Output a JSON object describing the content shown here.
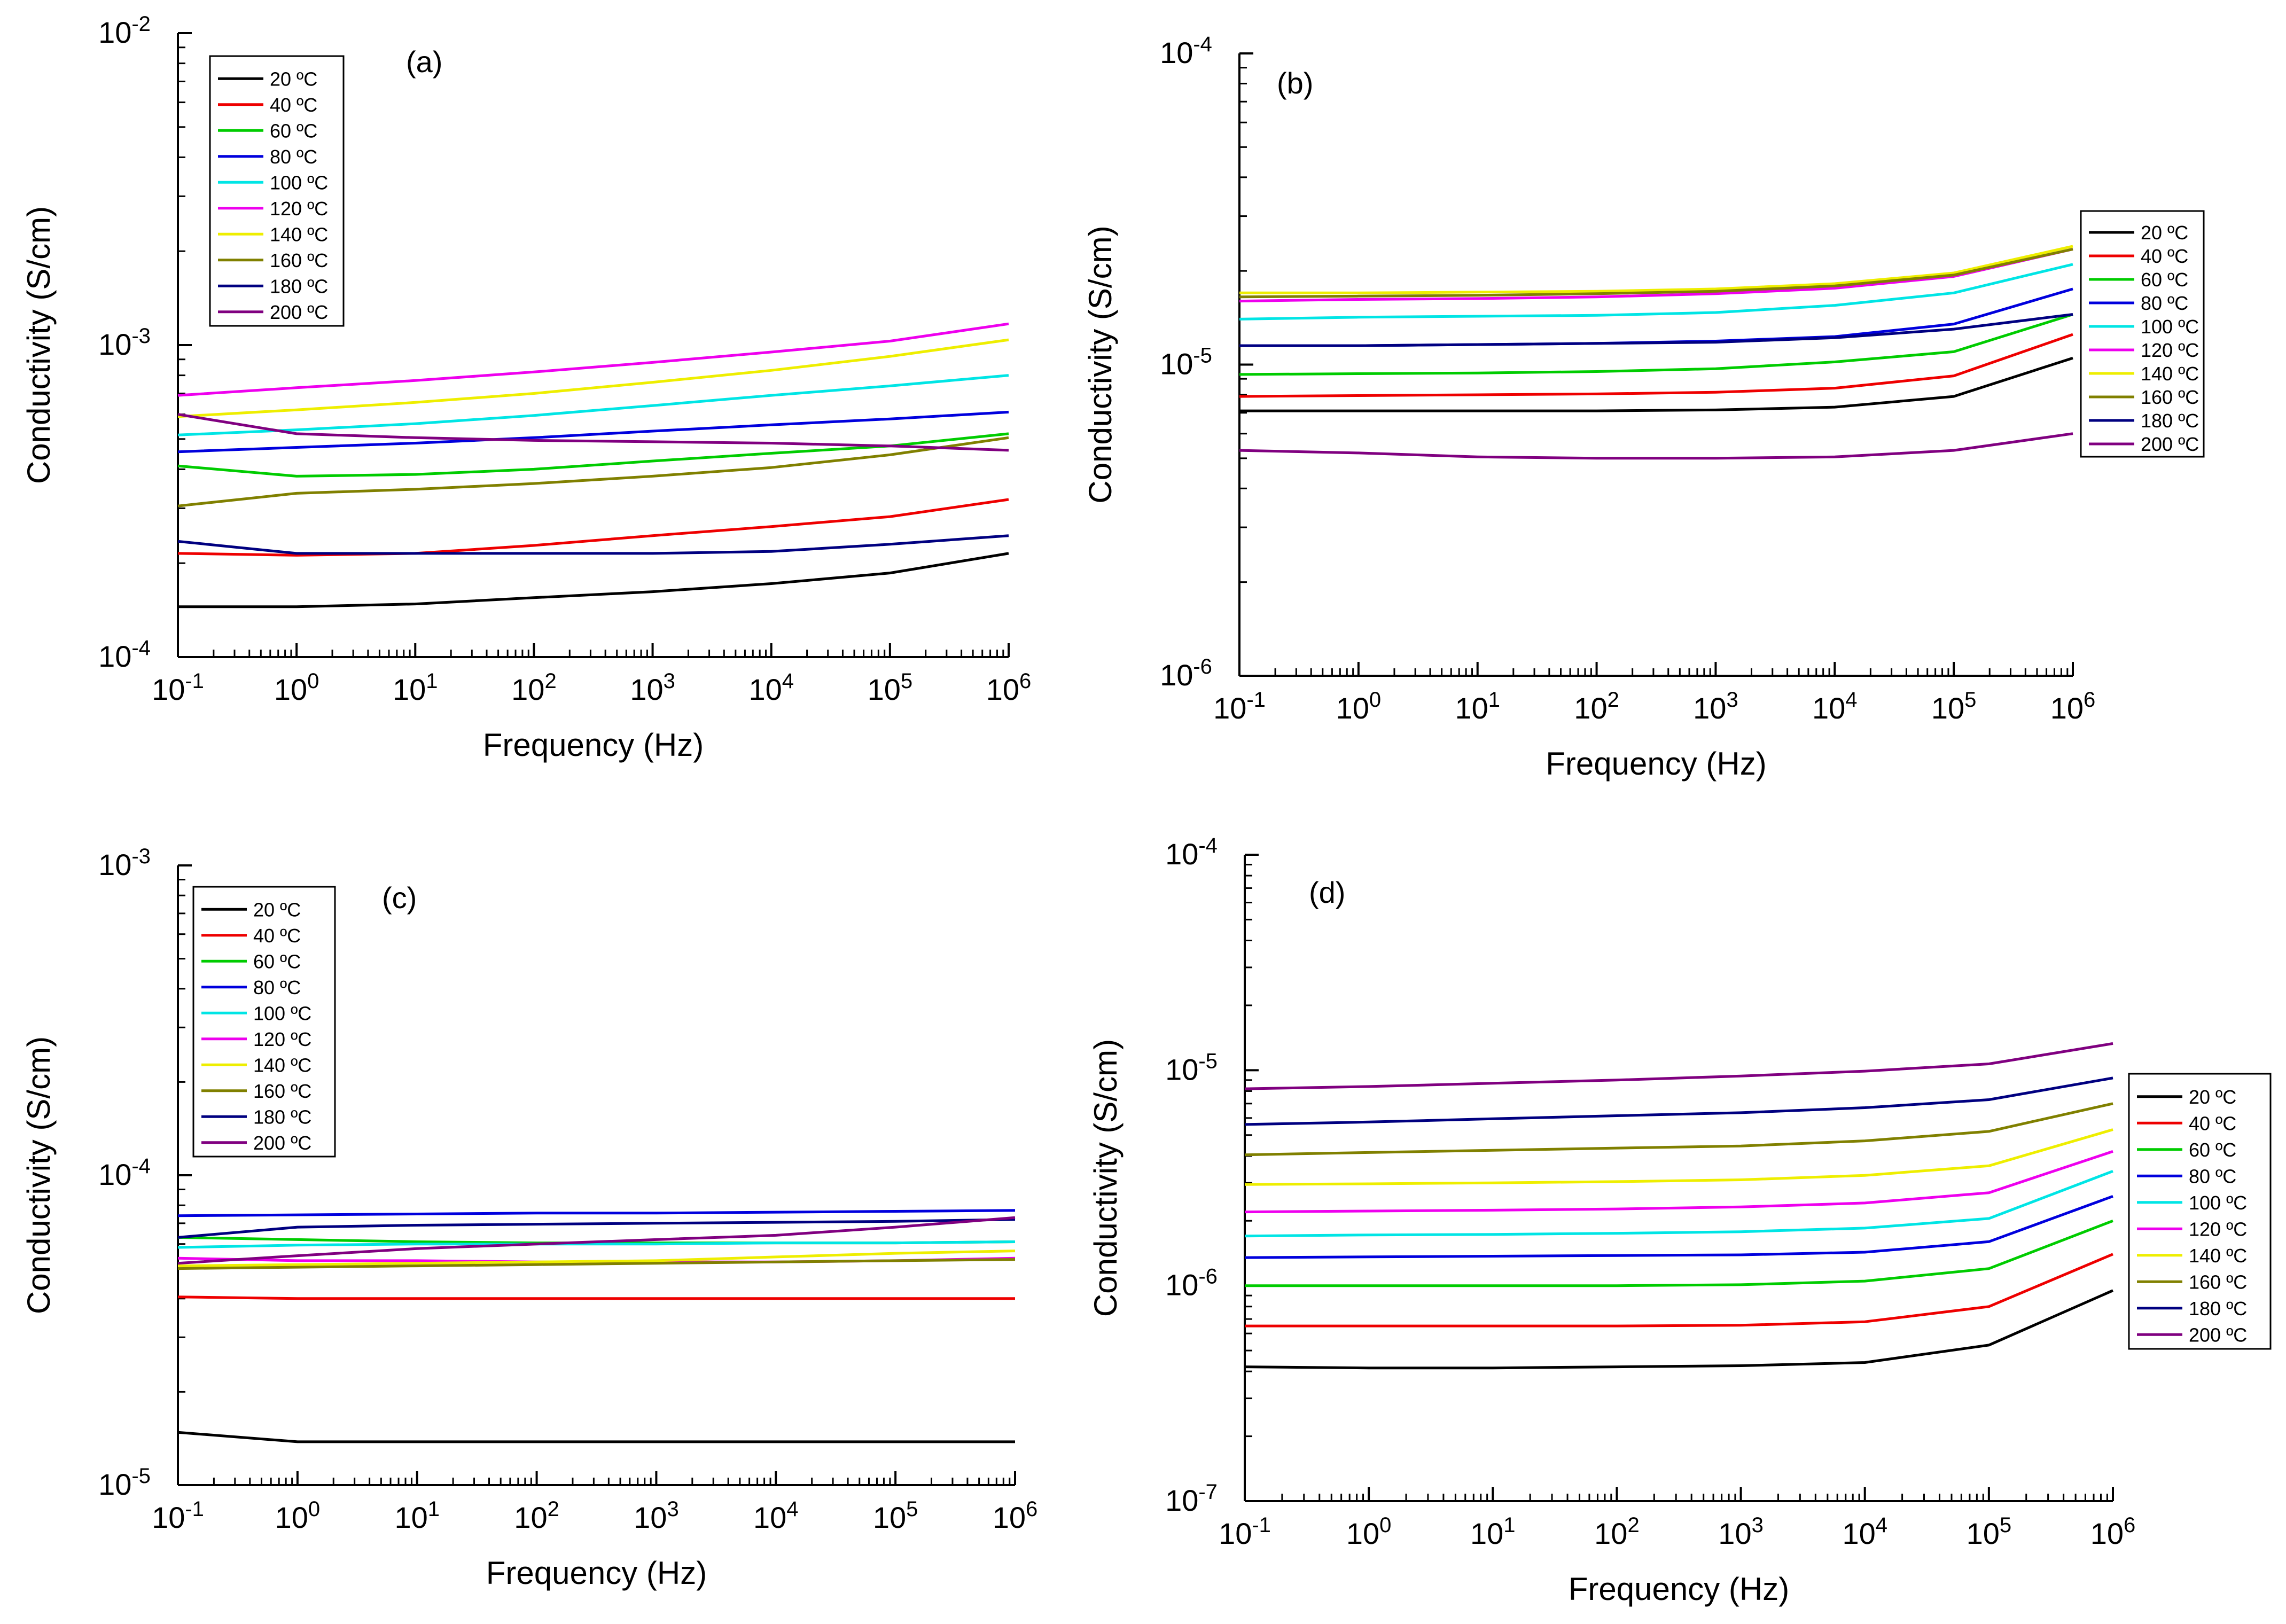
{
  "figure": {
    "panels_description_count": 4
  },
  "series_colors": {
    "20 ºC": "#000000",
    "40 ºC": "#ee0000",
    "60 ºC": "#00cc00",
    "80 ºC": "#0000dd",
    "100 ºC": "#00e5e5",
    "120 ºC": "#ee00ee",
    "140 ºC": "#eeee00",
    "160 ºC": "#808000",
    "180 ºC": "#000080",
    "200 ºC": "#800080"
  },
  "chart_data": [
    {
      "type": "line",
      "panel_label": "(a)",
      "xlabel": "Frequency (Hz)",
      "ylabel": "Conductivity (S/cm)",
      "xscale": "log",
      "yscale": "log",
      "xlim": [
        0.1,
        1000000
      ],
      "ylim": [
        0.0001,
        0.01
      ],
      "x_tick_exponents": [
        "-1",
        "0",
        "1",
        "2",
        "3",
        "4",
        "5",
        "6"
      ],
      "y_tick_exponents": [
        "-4",
        "-3",
        "-2"
      ],
      "legend_position": "top-left",
      "x": [
        0.1,
        1,
        10,
        100,
        1000,
        10000,
        100000,
        1000000
      ],
      "series": [
        {
          "name": "20 ºC",
          "values": [
            0.000145,
            0.000145,
            0.000148,
            0.000155,
            0.000162,
            0.000172,
            0.000186,
            0.000215
          ]
        },
        {
          "name": "40 ºC",
          "values": [
            0.000215,
            0.000212,
            0.000215,
            0.000228,
            0.000245,
            0.000262,
            0.000282,
            0.00032
          ]
        },
        {
          "name": "60 ºC",
          "values": [
            0.00041,
            0.00038,
            0.000385,
            0.0004,
            0.000425,
            0.00045,
            0.000475,
            0.00052
          ]
        },
        {
          "name": "80 ºC",
          "values": [
            0.000455,
            0.00047,
            0.000485,
            0.000505,
            0.00053,
            0.000555,
            0.00058,
            0.00061
          ]
        },
        {
          "name": "100 ºC",
          "values": [
            0.000515,
            0.000535,
            0.00056,
            0.000595,
            0.00064,
            0.00069,
            0.00074,
            0.0008
          ]
        },
        {
          "name": "120 ºC",
          "values": [
            0.00069,
            0.00073,
            0.00077,
            0.00082,
            0.00088,
            0.00095,
            0.00103,
            0.00117
          ]
        },
        {
          "name": "140 ºC",
          "values": [
            0.00059,
            0.00062,
            0.000655,
            0.0007,
            0.00076,
            0.00083,
            0.00092,
            0.00104
          ]
        },
        {
          "name": "160 ºC",
          "values": [
            0.000305,
            0.000335,
            0.000345,
            0.00036,
            0.00038,
            0.000405,
            0.000445,
            0.000505
          ]
        },
        {
          "name": "180 ºC",
          "values": [
            0.000235,
            0.000215,
            0.000215,
            0.000215,
            0.000215,
            0.000218,
            0.00023,
            0.000245
          ]
        },
        {
          "name": "200 ºC",
          "values": [
            0.0006,
            0.00052,
            0.000505,
            0.000495,
            0.00049,
            0.000485,
            0.000475,
            0.00046
          ]
        }
      ]
    },
    {
      "type": "line",
      "panel_label": "(b)",
      "xlabel": "Frequency (Hz)",
      "ylabel": "Conductivity (S/cm)",
      "xscale": "log",
      "yscale": "log",
      "xlim": [
        0.1,
        1000000
      ],
      "ylim": [
        1e-06,
        0.0001
      ],
      "x_tick_exponents": [
        "-1",
        "0",
        "1",
        "2",
        "3",
        "4",
        "5",
        "6"
      ],
      "y_tick_exponents": [
        "-6",
        "-5",
        "-4"
      ],
      "legend_position": "right",
      "x": [
        0.1,
        1,
        10,
        100,
        1000,
        10000,
        100000,
        1000000
      ],
      "series": [
        {
          "name": "20 ºC",
          "values": [
            7.1e-06,
            7.1e-06,
            7.1e-06,
            7.1e-06,
            7.15e-06,
            7.3e-06,
            7.9e-06,
            1.05e-05
          ]
        },
        {
          "name": "40 ºC",
          "values": [
            7.9e-06,
            7.95e-06,
            8e-06,
            8.05e-06,
            8.15e-06,
            8.4e-06,
            9.2e-06,
            1.25e-05
          ]
        },
        {
          "name": "60 ºC",
          "values": [
            9.3e-06,
            9.35e-06,
            9.4e-06,
            9.5e-06,
            9.7e-06,
            1.02e-05,
            1.1e-05,
            1.45e-05
          ]
        },
        {
          "name": "80 ºC",
          "values": [
            1.15e-05,
            1.15e-05,
            1.16e-05,
            1.17e-05,
            1.19e-05,
            1.23e-05,
            1.35e-05,
            1.75e-05
          ]
        },
        {
          "name": "100 ºC",
          "values": [
            1.4e-05,
            1.42e-05,
            1.43e-05,
            1.44e-05,
            1.47e-05,
            1.55e-05,
            1.7e-05,
            2.1e-05
          ]
        },
        {
          "name": "120 ºC",
          "values": [
            1.6e-05,
            1.62e-05,
            1.63e-05,
            1.65e-05,
            1.69e-05,
            1.76e-05,
            1.92e-05,
            2.35e-05
          ]
        },
        {
          "name": "140 ºC",
          "values": [
            1.7e-05,
            1.7e-05,
            1.71e-05,
            1.72e-05,
            1.75e-05,
            1.82e-05,
            1.97e-05,
            2.4e-05
          ]
        },
        {
          "name": "160 ºC",
          "values": [
            1.65e-05,
            1.66e-05,
            1.67e-05,
            1.69e-05,
            1.72e-05,
            1.79e-05,
            1.94e-05,
            2.35e-05
          ]
        },
        {
          "name": "180 ºC",
          "values": [
            1.15e-05,
            1.15e-05,
            1.16e-05,
            1.17e-05,
            1.18e-05,
            1.22e-05,
            1.3e-05,
            1.45e-05
          ]
        },
        {
          "name": "200 ºC",
          "values": [
            5.3e-06,
            5.2e-06,
            5.05e-06,
            5e-06,
            5e-06,
            5.05e-06,
            5.3e-06,
            6e-06
          ]
        }
      ]
    },
    {
      "type": "line",
      "panel_label": "(c)",
      "xlabel": "Frequency (Hz)",
      "ylabel": "Conductivity (S/cm)",
      "xscale": "log",
      "yscale": "log",
      "xlim": [
        0.1,
        1000000
      ],
      "ylim": [
        1e-05,
        0.001
      ],
      "x_tick_exponents": [
        "-1",
        "0",
        "1",
        "2",
        "3",
        "4",
        "5",
        "6"
      ],
      "y_tick_exponents": [
        "-5",
        "-4",
        "-3"
      ],
      "legend_position": "top-left",
      "x": [
        0.1,
        1,
        10,
        100,
        1000,
        10000,
        100000,
        1000000
      ],
      "series": [
        {
          "name": "20 ºC",
          "values": [
            1.48e-05,
            1.38e-05,
            1.38e-05,
            1.38e-05,
            1.38e-05,
            1.38e-05,
            1.38e-05,
            1.38e-05
          ]
        },
        {
          "name": "40 ºC",
          "values": [
            4.05e-05,
            4e-05,
            4e-05,
            4e-05,
            4e-05,
            4e-05,
            4e-05,
            4e-05
          ]
        },
        {
          "name": "60 ºC",
          "values": [
            6.3e-05,
            6.2e-05,
            6.1e-05,
            6.05e-05,
            6.05e-05,
            6.05e-05,
            6.05e-05,
            6.1e-05
          ]
        },
        {
          "name": "80 ºC",
          "values": [
            7.4e-05,
            7.45e-05,
            7.5e-05,
            7.55e-05,
            7.55e-05,
            7.6e-05,
            7.65e-05,
            7.7e-05
          ]
        },
        {
          "name": "100 ºC",
          "values": [
            5.85e-05,
            5.95e-05,
            6e-05,
            6e-05,
            6e-05,
            6.05e-05,
            6.05e-05,
            6.1e-05
          ]
        },
        {
          "name": "120 ºC",
          "values": [
            5.4e-05,
            5.3e-05,
            5.3e-05,
            5.25e-05,
            5.25e-05,
            5.25e-05,
            5.3e-05,
            5.4e-05
          ]
        },
        {
          "name": "140 ºC",
          "values": [
            5.1e-05,
            5.15e-05,
            5.2e-05,
            5.25e-05,
            5.3e-05,
            5.45e-05,
            5.6e-05,
            5.7e-05
          ]
        },
        {
          "name": "160 ºC",
          "values": [
            5e-05,
            5.05e-05,
            5.1e-05,
            5.15e-05,
            5.2e-05,
            5.25e-05,
            5.3e-05,
            5.35e-05
          ]
        },
        {
          "name": "180 ºC",
          "values": [
            6.3e-05,
            6.8e-05,
            6.9e-05,
            6.95e-05,
            7e-05,
            7.05e-05,
            7.1e-05,
            7.2e-05
          ]
        },
        {
          "name": "200 ºC",
          "values": [
            5.2e-05,
            5.5e-05,
            5.8e-05,
            6e-05,
            6.2e-05,
            6.4e-05,
            6.8e-05,
            7.3e-05
          ]
        }
      ]
    },
    {
      "type": "line",
      "panel_label": "(d)",
      "xlabel": "Frequency (Hz)",
      "ylabel": "Conductivity (S/cm)",
      "xscale": "log",
      "yscale": "log",
      "xlim": [
        0.1,
        1000000
      ],
      "ylim": [
        1e-07,
        0.0001
      ],
      "x_tick_exponents": [
        "-1",
        "0",
        "1",
        "2",
        "3",
        "4",
        "5",
        "6"
      ],
      "y_tick_exponents": [
        "-7",
        "-6",
        "-5",
        "-4"
      ],
      "legend_position": "right",
      "x": [
        0.1,
        1,
        10,
        100,
        1000,
        10000,
        100000,
        1000000
      ],
      "series": [
        {
          "name": "20 ºC",
          "values": [
            4.2e-07,
            4.15e-07,
            4.15e-07,
            4.2e-07,
            4.25e-07,
            4.4e-07,
            5.3e-07,
            9.5e-07
          ]
        },
        {
          "name": "40 ºC",
          "values": [
            6.5e-07,
            6.5e-07,
            6.5e-07,
            6.5e-07,
            6.55e-07,
            6.8e-07,
            8e-07,
            1.4e-06
          ]
        },
        {
          "name": "60 ºC",
          "values": [
            1e-06,
            1e-06,
            1e-06,
            1e-06,
            1.01e-06,
            1.05e-06,
            1.2e-06,
            2e-06
          ]
        },
        {
          "name": "80 ºC",
          "values": [
            1.35e-06,
            1.36e-06,
            1.37e-06,
            1.38e-06,
            1.39e-06,
            1.43e-06,
            1.6e-06,
            2.6e-06
          ]
        },
        {
          "name": "100 ºC",
          "values": [
            1.7e-06,
            1.72e-06,
            1.73e-06,
            1.75e-06,
            1.78e-06,
            1.85e-06,
            2.05e-06,
            3.4e-06
          ]
        },
        {
          "name": "120 ºC",
          "values": [
            2.2e-06,
            2.22e-06,
            2.24e-06,
            2.27e-06,
            2.32e-06,
            2.42e-06,
            2.7e-06,
            4.2e-06
          ]
        },
        {
          "name": "140 ºC",
          "values": [
            2.95e-06,
            2.97e-06,
            3e-06,
            3.04e-06,
            3.1e-06,
            3.25e-06,
            3.6e-06,
            5.3e-06
          ]
        },
        {
          "name": "160 ºC",
          "values": [
            4.05e-06,
            4.15e-06,
            4.25e-06,
            4.35e-06,
            4.45e-06,
            4.7e-06,
            5.2e-06,
            7e-06
          ]
        },
        {
          "name": "180 ºC",
          "values": [
            5.6e-06,
            5.75e-06,
            5.95e-06,
            6.15e-06,
            6.35e-06,
            6.7e-06,
            7.3e-06,
            9.2e-06
          ]
        },
        {
          "name": "200 ºC",
          "values": [
            8.2e-06,
            8.4e-06,
            8.7e-06,
            9e-06,
            9.4e-06,
            9.9e-06,
            1.07e-05,
            1.33e-05
          ]
        }
      ]
    }
  ]
}
